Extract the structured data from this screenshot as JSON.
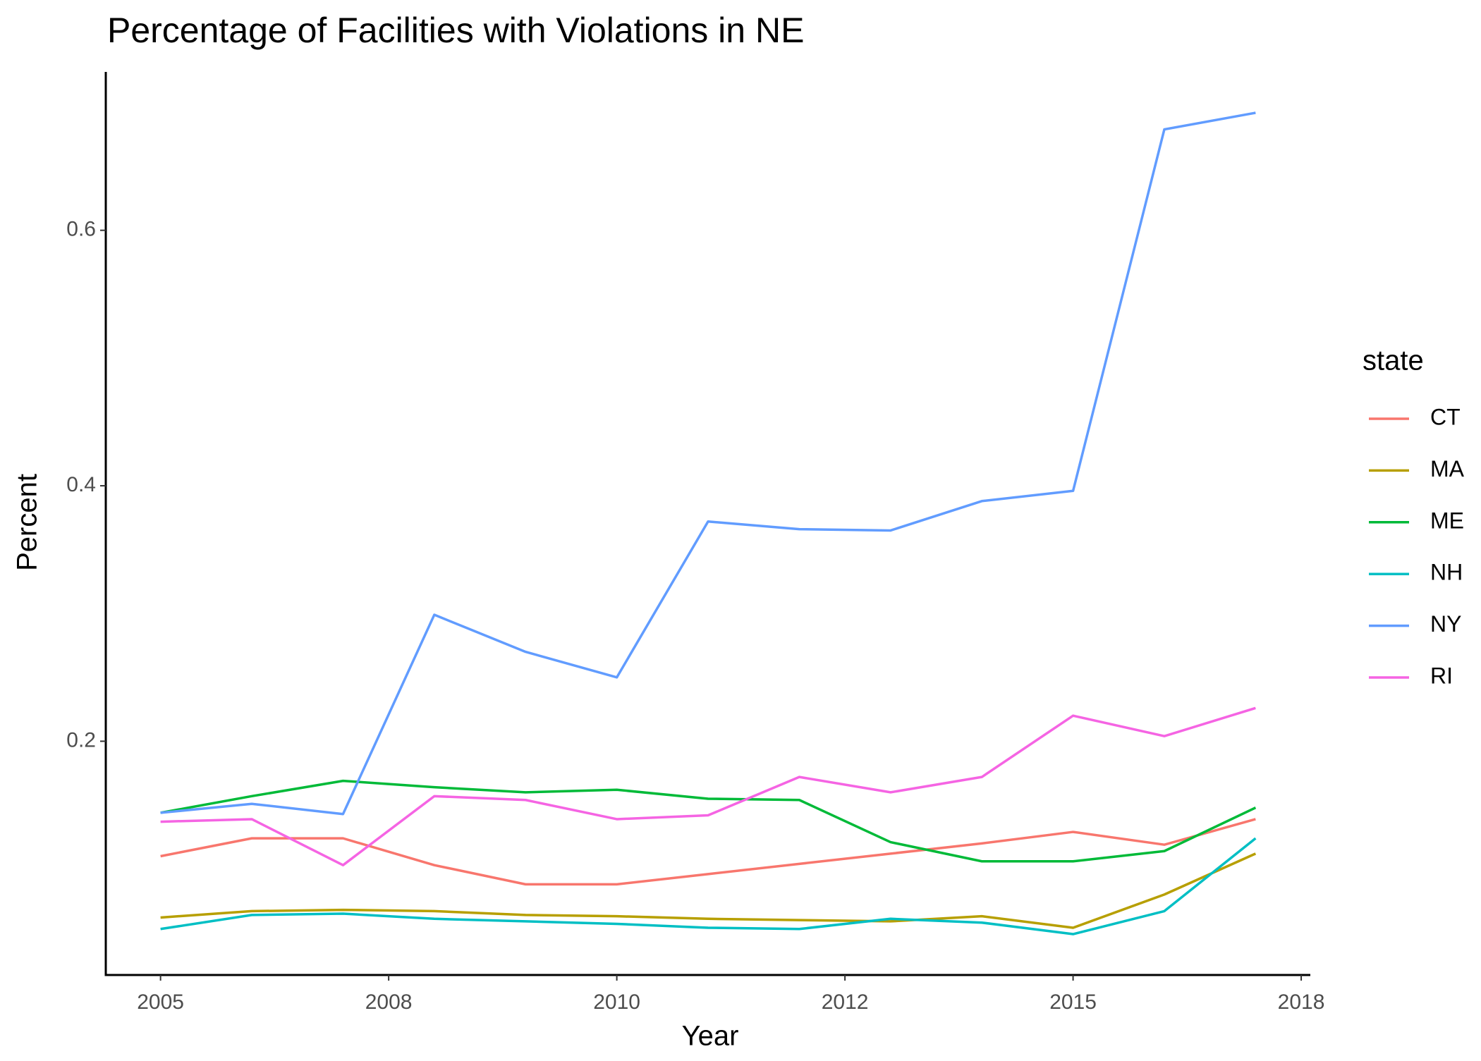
{
  "chart_data": {
    "type": "line",
    "title": "Percentage of Facilities with Violations in NE",
    "x_label": "Year",
    "y_label": "Percent",
    "legend_title": "state",
    "x": [
      2005,
      2006,
      2007,
      2008,
      2009,
      2010,
      2011,
      2012,
      2013,
      2014,
      2015,
      2016,
      2017
    ],
    "xlim": [
      2004.4,
      2017.6
    ],
    "xticks": [
      2005,
      {
        "value": 2007.5,
        "label": "2008"
      },
      2010,
      {
        "value": 2012.5,
        "label": "2012"
      },
      2015,
      {
        "value": 2017.5,
        "label": "2018"
      }
    ],
    "ylim": [
      0.017,
      0.724
    ],
    "yticks": [
      0.2,
      0.4,
      0.6
    ],
    "grid": false,
    "legend": "right",
    "series": [
      {
        "name": "CT",
        "color": "#F8766D",
        "values": [
          0.11,
          0.124,
          0.124,
          0.103,
          0.088,
          0.088,
          0.096,
          0.104,
          0.112,
          0.12,
          0.129,
          0.119,
          0.139
        ]
      },
      {
        "name": "MA",
        "color": "#B79F00",
        "values": [
          0.062,
          0.067,
          0.068,
          0.067,
          0.064,
          0.063,
          0.061,
          0.06,
          0.059,
          0.063,
          0.054,
          0.08,
          0.112
        ]
      },
      {
        "name": "ME",
        "color": "#00BA38",
        "values": [
          0.144,
          0.157,
          0.169,
          0.164,
          0.16,
          0.162,
          0.155,
          0.154,
          0.121,
          0.106,
          0.106,
          0.114,
          0.148
        ]
      },
      {
        "name": "NH",
        "color": "#00BFC4",
        "values": [
          0.053,
          0.064,
          0.065,
          0.061,
          0.059,
          0.057,
          0.054,
          0.053,
          0.061,
          0.058,
          0.049,
          0.067,
          0.124
        ]
      },
      {
        "name": "NY",
        "color": "#619CFF",
        "values": [
          0.144,
          0.151,
          0.143,
          0.299,
          0.27,
          0.25,
          0.372,
          0.366,
          0.365,
          0.388,
          0.396,
          0.679,
          0.692
        ]
      },
      {
        "name": "RI",
        "color": "#F564E3",
        "values": [
          0.137,
          0.139,
          0.103,
          0.157,
          0.154,
          0.139,
          0.142,
          0.172,
          0.16,
          0.172,
          0.22,
          0.204,
          0.226
        ]
      }
    ]
  }
}
